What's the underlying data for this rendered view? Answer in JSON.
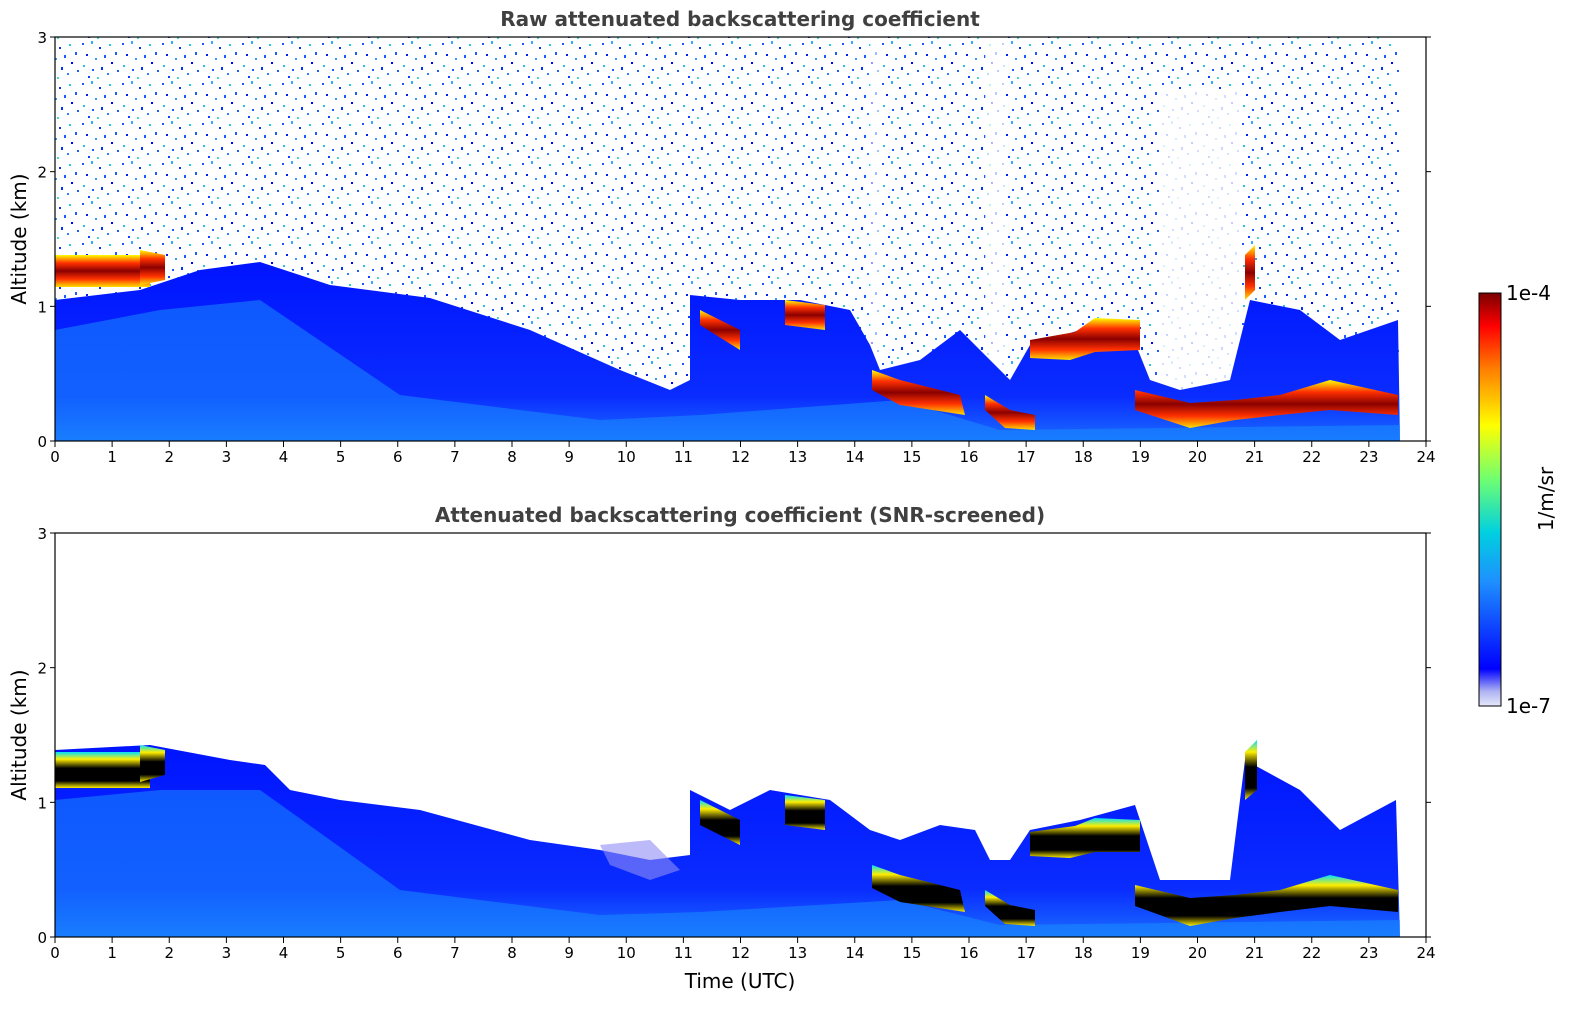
{
  "chart_data": [
    {
      "type": "heatmap",
      "title": "Raw attenuated backscattering coefficient",
      "xlabel": "",
      "ylabel": "Altitude (km)",
      "xlim": [
        0,
        24
      ],
      "ylim": [
        0,
        3
      ],
      "xticks": [
        "0",
        "1",
        "2",
        "3",
        "4",
        "5",
        "6",
        "7",
        "8",
        "9",
        "10",
        "11",
        "12",
        "13",
        "14",
        "15",
        "16",
        "17",
        "18",
        "19",
        "20",
        "21",
        "22",
        "23",
        "24"
      ],
      "yticks": [
        "0",
        "1",
        "2",
        "3"
      ],
      "data_end_time": 23.55,
      "features": [
        {
          "name": "noise field",
          "altitude_km": [
            0,
            3
          ]
        },
        {
          "name": "boundary layer aerosol",
          "altitude_km": [
            0,
            1.1
          ]
        },
        {
          "name": "cloud layer",
          "time_utc": [
            0,
            1.8
          ],
          "altitude_km": [
            1.15,
            1.3
          ]
        },
        {
          "name": "cloud layer",
          "time_utc": [
            14.3,
            17.2
          ],
          "altitude_km": [
            0.15,
            0.45
          ]
        },
        {
          "name": "cloud layer",
          "time_utc": [
            17.2,
            19.2
          ],
          "altitude_km": [
            0.6,
            0.85
          ]
        },
        {
          "name": "cloud layer",
          "time_utc": [
            19.2,
            23.55
          ],
          "altitude_km": [
            0.1,
            0.4
          ]
        }
      ]
    },
    {
      "type": "heatmap",
      "title": "Attenuated backscattering coefficient (SNR-screened)",
      "xlabel": "Time (UTC)",
      "ylabel": "Altitude (km)",
      "xlim": [
        0,
        24
      ],
      "ylim": [
        0,
        3
      ],
      "xticks": [
        "0",
        "1",
        "2",
        "3",
        "4",
        "5",
        "6",
        "7",
        "8",
        "9",
        "10",
        "11",
        "12",
        "13",
        "14",
        "15",
        "16",
        "17",
        "18",
        "19",
        "20",
        "21",
        "22",
        "23",
        "24"
      ],
      "yticks": [
        "0",
        "1",
        "2",
        "3"
      ],
      "data_end_time": 23.55,
      "features": [
        {
          "name": "boundary layer aerosol",
          "altitude_km": [
            0,
            1.1
          ]
        },
        {
          "name": "saturated cloud (black)",
          "time_utc": [
            0,
            1.8
          ],
          "altitude_km": [
            1.1,
            1.3
          ]
        },
        {
          "name": "saturated cloud (black)",
          "time_utc": [
            14.3,
            23.55
          ],
          "altitude_km": [
            0.1,
            0.85
          ]
        }
      ]
    }
  ],
  "colorbar": {
    "label": "1/m/sr",
    "max_label": "1e-4",
    "min_label": "1e-7",
    "range": [
      1e-07,
      0.0001
    ],
    "scale": "log",
    "colors": [
      "#e0e4f8",
      "#aab0f0",
      "#0000ff",
      "#1e90ff",
      "#00ced1",
      "#66ff66",
      "#ffff00",
      "#ff8000",
      "#ff0000",
      "#800000"
    ]
  }
}
